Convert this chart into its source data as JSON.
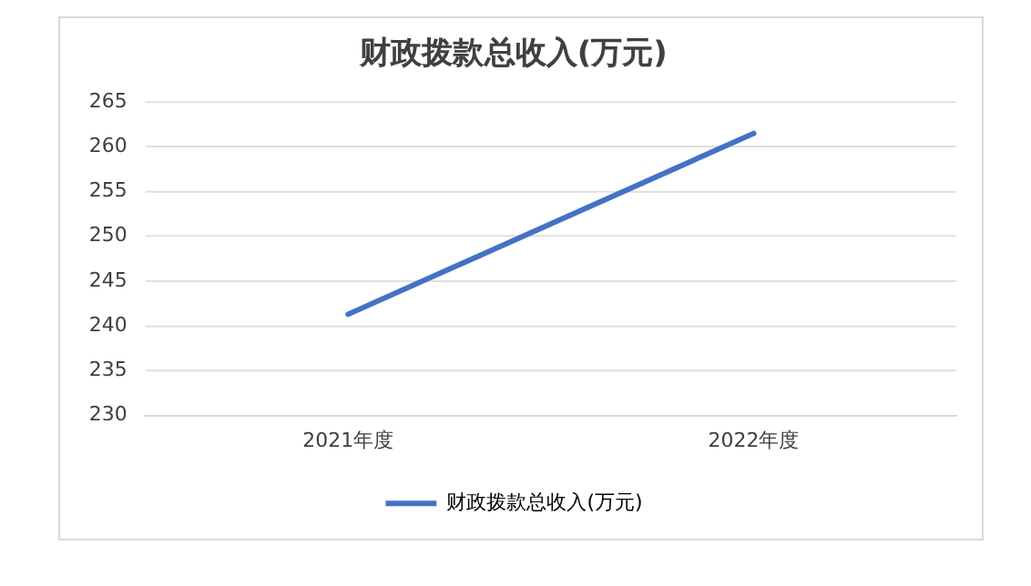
{
  "chart_data": {
    "type": "line",
    "title": "财政拨款总收入(万元)",
    "categories": [
      "2021年度",
      "2022年度"
    ],
    "series": [
      {
        "name": "财政拨款总收入(万元)",
        "color": "#4472c4",
        "values": [
          241.3,
          261.5
        ]
      }
    ],
    "ylim": [
      230,
      265
    ],
    "yticks": [
      230,
      235,
      240,
      245,
      250,
      255,
      260,
      265
    ],
    "grid": "y",
    "legend": "bottom",
    "marker": "none",
    "line_style": "solid"
  }
}
